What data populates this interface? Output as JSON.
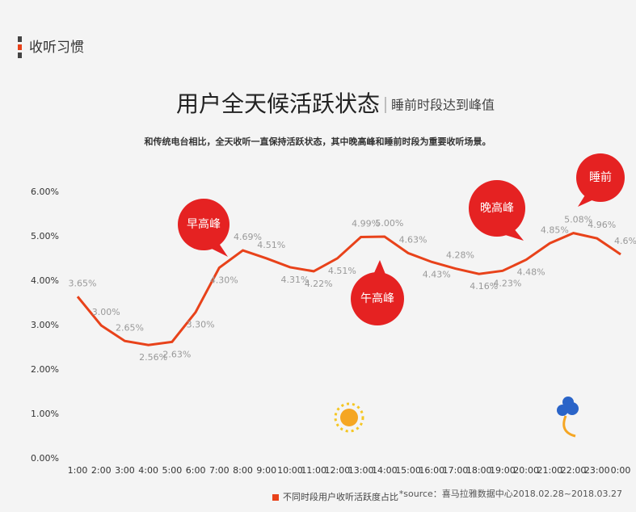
{
  "header": "收听习惯",
  "chart_data": {
    "type": "line",
    "title": "用户全天候活跃状态",
    "subtitle": "睡前时段达到峰值",
    "description": "和传统电台相比，全天收听一直保持活跃状态，其中晚高峰和睡前时段为重要收听场景。",
    "categories": [
      "1:00",
      "2:00",
      "3:00",
      "4:00",
      "5:00",
      "6:00",
      "7:00",
      "8:00",
      "9:00",
      "10:00",
      "11:00",
      "12:00",
      "13:00",
      "14:00",
      "15:00",
      "16:00",
      "17:00",
      "18:00",
      "19:00",
      "20:00",
      "21:00",
      "22:00",
      "23:00",
      "0:00"
    ],
    "series": [
      {
        "name": "不同时段用户收听活跃度占比",
        "color": "#e8421a",
        "values": [
          3.65,
          3.0,
          2.65,
          2.56,
          2.63,
          3.3,
          4.3,
          4.69,
          4.51,
          4.31,
          4.22,
          4.51,
          4.99,
          5.0,
          4.63,
          4.43,
          4.28,
          4.16,
          4.23,
          4.48,
          4.85,
          5.08,
          4.96,
          4.6
        ],
        "value_labels": [
          "3.65%",
          "3.00%",
          "2.65%",
          "2.56%",
          "2.63%",
          "3.30%",
          "4.30%",
          "4.69%",
          "4.51%",
          "4.31%",
          "4.22%",
          "4.51%",
          "4.99%",
          "5.00%",
          "4.63%",
          "4.43%",
          "4.28%",
          "4.16%",
          "4.23%",
          "4.48%",
          "4.85%",
          "5.08%",
          "4.96%",
          "4.6%"
        ]
      }
    ],
    "ylim": [
      0,
      6
    ],
    "yticks": [
      {
        "value": 0,
        "label": "0.00%"
      },
      {
        "value": 1,
        "label": "1.00%"
      },
      {
        "value": 2,
        "label": "2.00%"
      },
      {
        "value": 3,
        "label": "3.00%"
      },
      {
        "value": 4,
        "label": "4.00%"
      },
      {
        "value": 5,
        "label": "5.00%"
      },
      {
        "value": 6,
        "label": "6.00%"
      }
    ],
    "annotations": [
      "早高峰",
      "午高峰",
      "晚高峰",
      "睡前"
    ],
    "source": "*source：喜马拉雅数据中心2018.02.28~2018.03.27"
  }
}
